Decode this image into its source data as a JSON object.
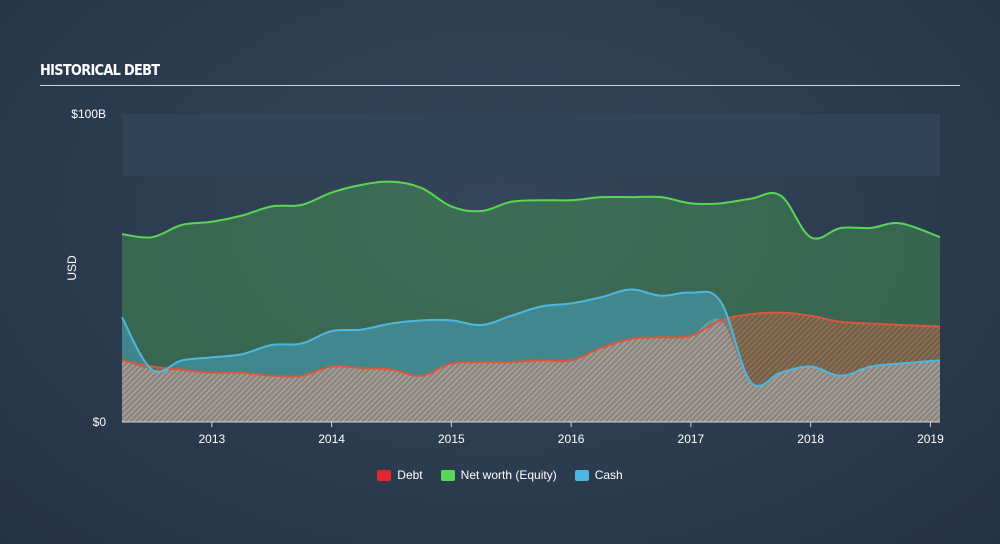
{
  "title": "HISTORICAL DEBT",
  "chart_data": {
    "type": "area",
    "ylabel": "USD",
    "y_ticks": [
      {
        "value": 100,
        "label": "$100B"
      },
      {
        "value": 0,
        "label": "$0"
      }
    ],
    "ylim": [
      0,
      100
    ],
    "xlim": [
      2012.25,
      2019.08
    ],
    "x_ticks": [
      {
        "value": 2013,
        "label": "2013"
      },
      {
        "value": 2014,
        "label": "2014"
      },
      {
        "value": 2015,
        "label": "2015"
      },
      {
        "value": 2016,
        "label": "2016"
      },
      {
        "value": 2017,
        "label": "2017"
      },
      {
        "value": 2018,
        "label": "2018"
      },
      {
        "value": 2019,
        "label": "2019"
      }
    ],
    "legend_position": "bottom-center",
    "series": [
      {
        "name": "Debt",
        "color": "#e0422f",
        "x": [
          2012.25,
          2012.5,
          2012.75,
          2013.0,
          2013.25,
          2013.5,
          2013.75,
          2014.0,
          2014.25,
          2014.5,
          2014.75,
          2015.0,
          2015.25,
          2015.5,
          2015.75,
          2016.0,
          2016.25,
          2016.5,
          2016.75,
          2017.0,
          2017.25,
          2017.5,
          2017.75,
          2018.0,
          2018.25,
          2018.5,
          2018.75,
          2019.08
        ],
        "values": [
          20,
          18,
          17,
          16,
          16,
          15,
          15,
          18,
          17.5,
          17,
          15,
          19,
          19.5,
          19.5,
          20,
          20,
          24,
          27,
          27.5,
          28,
          33,
          35,
          35.5,
          34.5,
          32.5,
          32,
          31.5,
          31
        ]
      },
      {
        "name": "Net worth (Equity)",
        "color": "#58d655",
        "x": [
          2012.25,
          2012.5,
          2012.75,
          2013.0,
          2013.25,
          2013.5,
          2013.75,
          2014.0,
          2014.25,
          2014.5,
          2014.75,
          2015.0,
          2015.25,
          2015.5,
          2015.75,
          2016.0,
          2016.25,
          2016.5,
          2016.75,
          2017.0,
          2017.25,
          2017.5,
          2017.75,
          2018.0,
          2018.25,
          2018.5,
          2018.75,
          2019.08
        ],
        "values": [
          61,
          60,
          64,
          65,
          67,
          70,
          70.5,
          74.5,
          77,
          78,
          76,
          70,
          68.5,
          71.5,
          72,
          72,
          73,
          73,
          73,
          71,
          71,
          72.5,
          73.5,
          60,
          63,
          63,
          64.5,
          60
        ]
      },
      {
        "name": "Cash",
        "color": "#4cb8df",
        "x": [
          2012.25,
          2012.5,
          2012.75,
          2013.0,
          2013.25,
          2013.5,
          2013.75,
          2014.0,
          2014.25,
          2014.5,
          2014.75,
          2015.0,
          2015.25,
          2015.5,
          2015.75,
          2016.0,
          2016.25,
          2016.5,
          2016.75,
          2017.0,
          2017.25,
          2017.5,
          2017.75,
          2018.0,
          2018.25,
          2018.5,
          2018.75,
          2019.08
        ],
        "values": [
          34,
          17,
          20,
          21,
          22,
          25,
          25.5,
          29.5,
          30,
          32,
          33,
          33,
          31.5,
          34.5,
          37.5,
          38.5,
          40.5,
          43,
          41,
          42,
          39,
          13,
          16,
          18,
          15,
          18,
          19,
          20
        ]
      }
    ]
  }
}
